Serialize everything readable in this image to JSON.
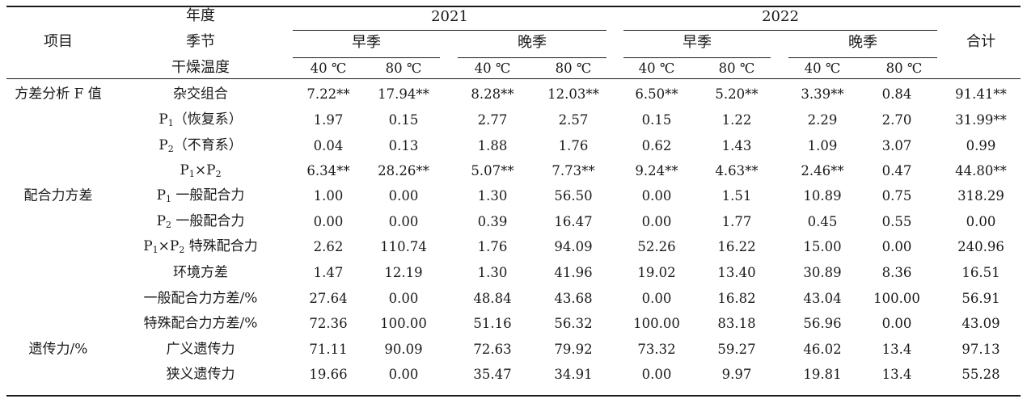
{
  "header": {
    "item": "项目",
    "year_label": "年度",
    "season_label": "季节",
    "temp_label": "干燥温度",
    "years": [
      "2021",
      "2022"
    ],
    "seasons": [
      "早季",
      "晚季",
      "早季",
      "晚季"
    ],
    "temps": [
      "40 ℃",
      "80 ℃",
      "40 ℃",
      "80 ℃",
      "40 ℃",
      "80 ℃",
      "40 ℃",
      "80 ℃"
    ],
    "total": "合计"
  },
  "groups": [
    {
      "label": "方差分析 F 值"
    },
    {
      "label": "配合力方差"
    },
    {
      "label": "遗传力/%"
    }
  ],
  "rows": [
    {
      "label": "杂交组合",
      "values": [
        "7.22**",
        "17.94**",
        "8.28**",
        "12.03**",
        "6.50**",
        "5.20**",
        "3.39**",
        "0.84",
        "91.41**"
      ]
    },
    {
      "label_pre": "P",
      "label_sub": "1",
      "label_post": "（恢复系）",
      "values": [
        "1.97",
        "0.15",
        "2.77",
        "2.57",
        "0.15",
        "1.22",
        "2.29",
        "2.70",
        "31.99**"
      ]
    },
    {
      "label_pre": "P",
      "label_sub": "2",
      "label_post": "（不育系）",
      "values": [
        "0.04",
        "0.13",
        "1.88",
        "1.76",
        "0.62",
        "1.43",
        "1.09",
        "3.07",
        "0.99"
      ]
    },
    {
      "label_pre": "P",
      "label_sub": "1",
      "label_mid": "×P",
      "label_sub2": "2",
      "label_post": "",
      "values": [
        "6.34**",
        "28.26**",
        "5.07**",
        "7.73**",
        "9.24**",
        "4.63**",
        "2.46**",
        "0.47",
        "44.80**"
      ]
    },
    {
      "label_pre": "P",
      "label_sub": "1",
      "label_post": " 一般配合力",
      "values": [
        "1.00",
        "0.00",
        "1.30",
        "56.50",
        "0.00",
        "1.51",
        "10.89",
        "0.75",
        "318.29"
      ]
    },
    {
      "label_pre": "P",
      "label_sub": "2",
      "label_post": " 一般配合力",
      "values": [
        "0.00",
        "0.00",
        "0.39",
        "16.47",
        "0.00",
        "1.77",
        "0.45",
        "0.55",
        "0.00"
      ]
    },
    {
      "label_pre": "P",
      "label_sub": "1",
      "label_mid": "×P",
      "label_sub2": "2",
      "label_post": " 特殊配合力",
      "values": [
        "2.62",
        "110.74",
        "1.76",
        "94.09",
        "52.26",
        "16.22",
        "15.00",
        "0.00",
        "240.96"
      ]
    },
    {
      "label": "环境方差",
      "values": [
        "1.47",
        "12.19",
        "1.30",
        "41.96",
        "19.02",
        "13.40",
        "30.89",
        "8.36",
        "16.51"
      ]
    },
    {
      "label": "一般配合力方差/%",
      "values": [
        "27.64",
        "0.00",
        "48.84",
        "43.68",
        "0.00",
        "16.82",
        "43.04",
        "100.00",
        "56.91"
      ]
    },
    {
      "label": "特殊配合力方差/%",
      "values": [
        "72.36",
        "100.00",
        "51.16",
        "56.32",
        "100.00",
        "83.18",
        "56.96",
        "0.00",
        "43.09"
      ]
    },
    {
      "label": "广义遗传力",
      "values": [
        "71.11",
        "90.09",
        "72.63",
        "79.92",
        "73.32",
        "59.27",
        "46.02",
        "13.4",
        "97.13"
      ]
    },
    {
      "label": "狭义遗传力",
      "values": [
        "19.66",
        "0.00",
        "35.47",
        "34.91",
        "0.00",
        "9.97",
        "19.81",
        "13.4",
        "55.28"
      ]
    }
  ]
}
